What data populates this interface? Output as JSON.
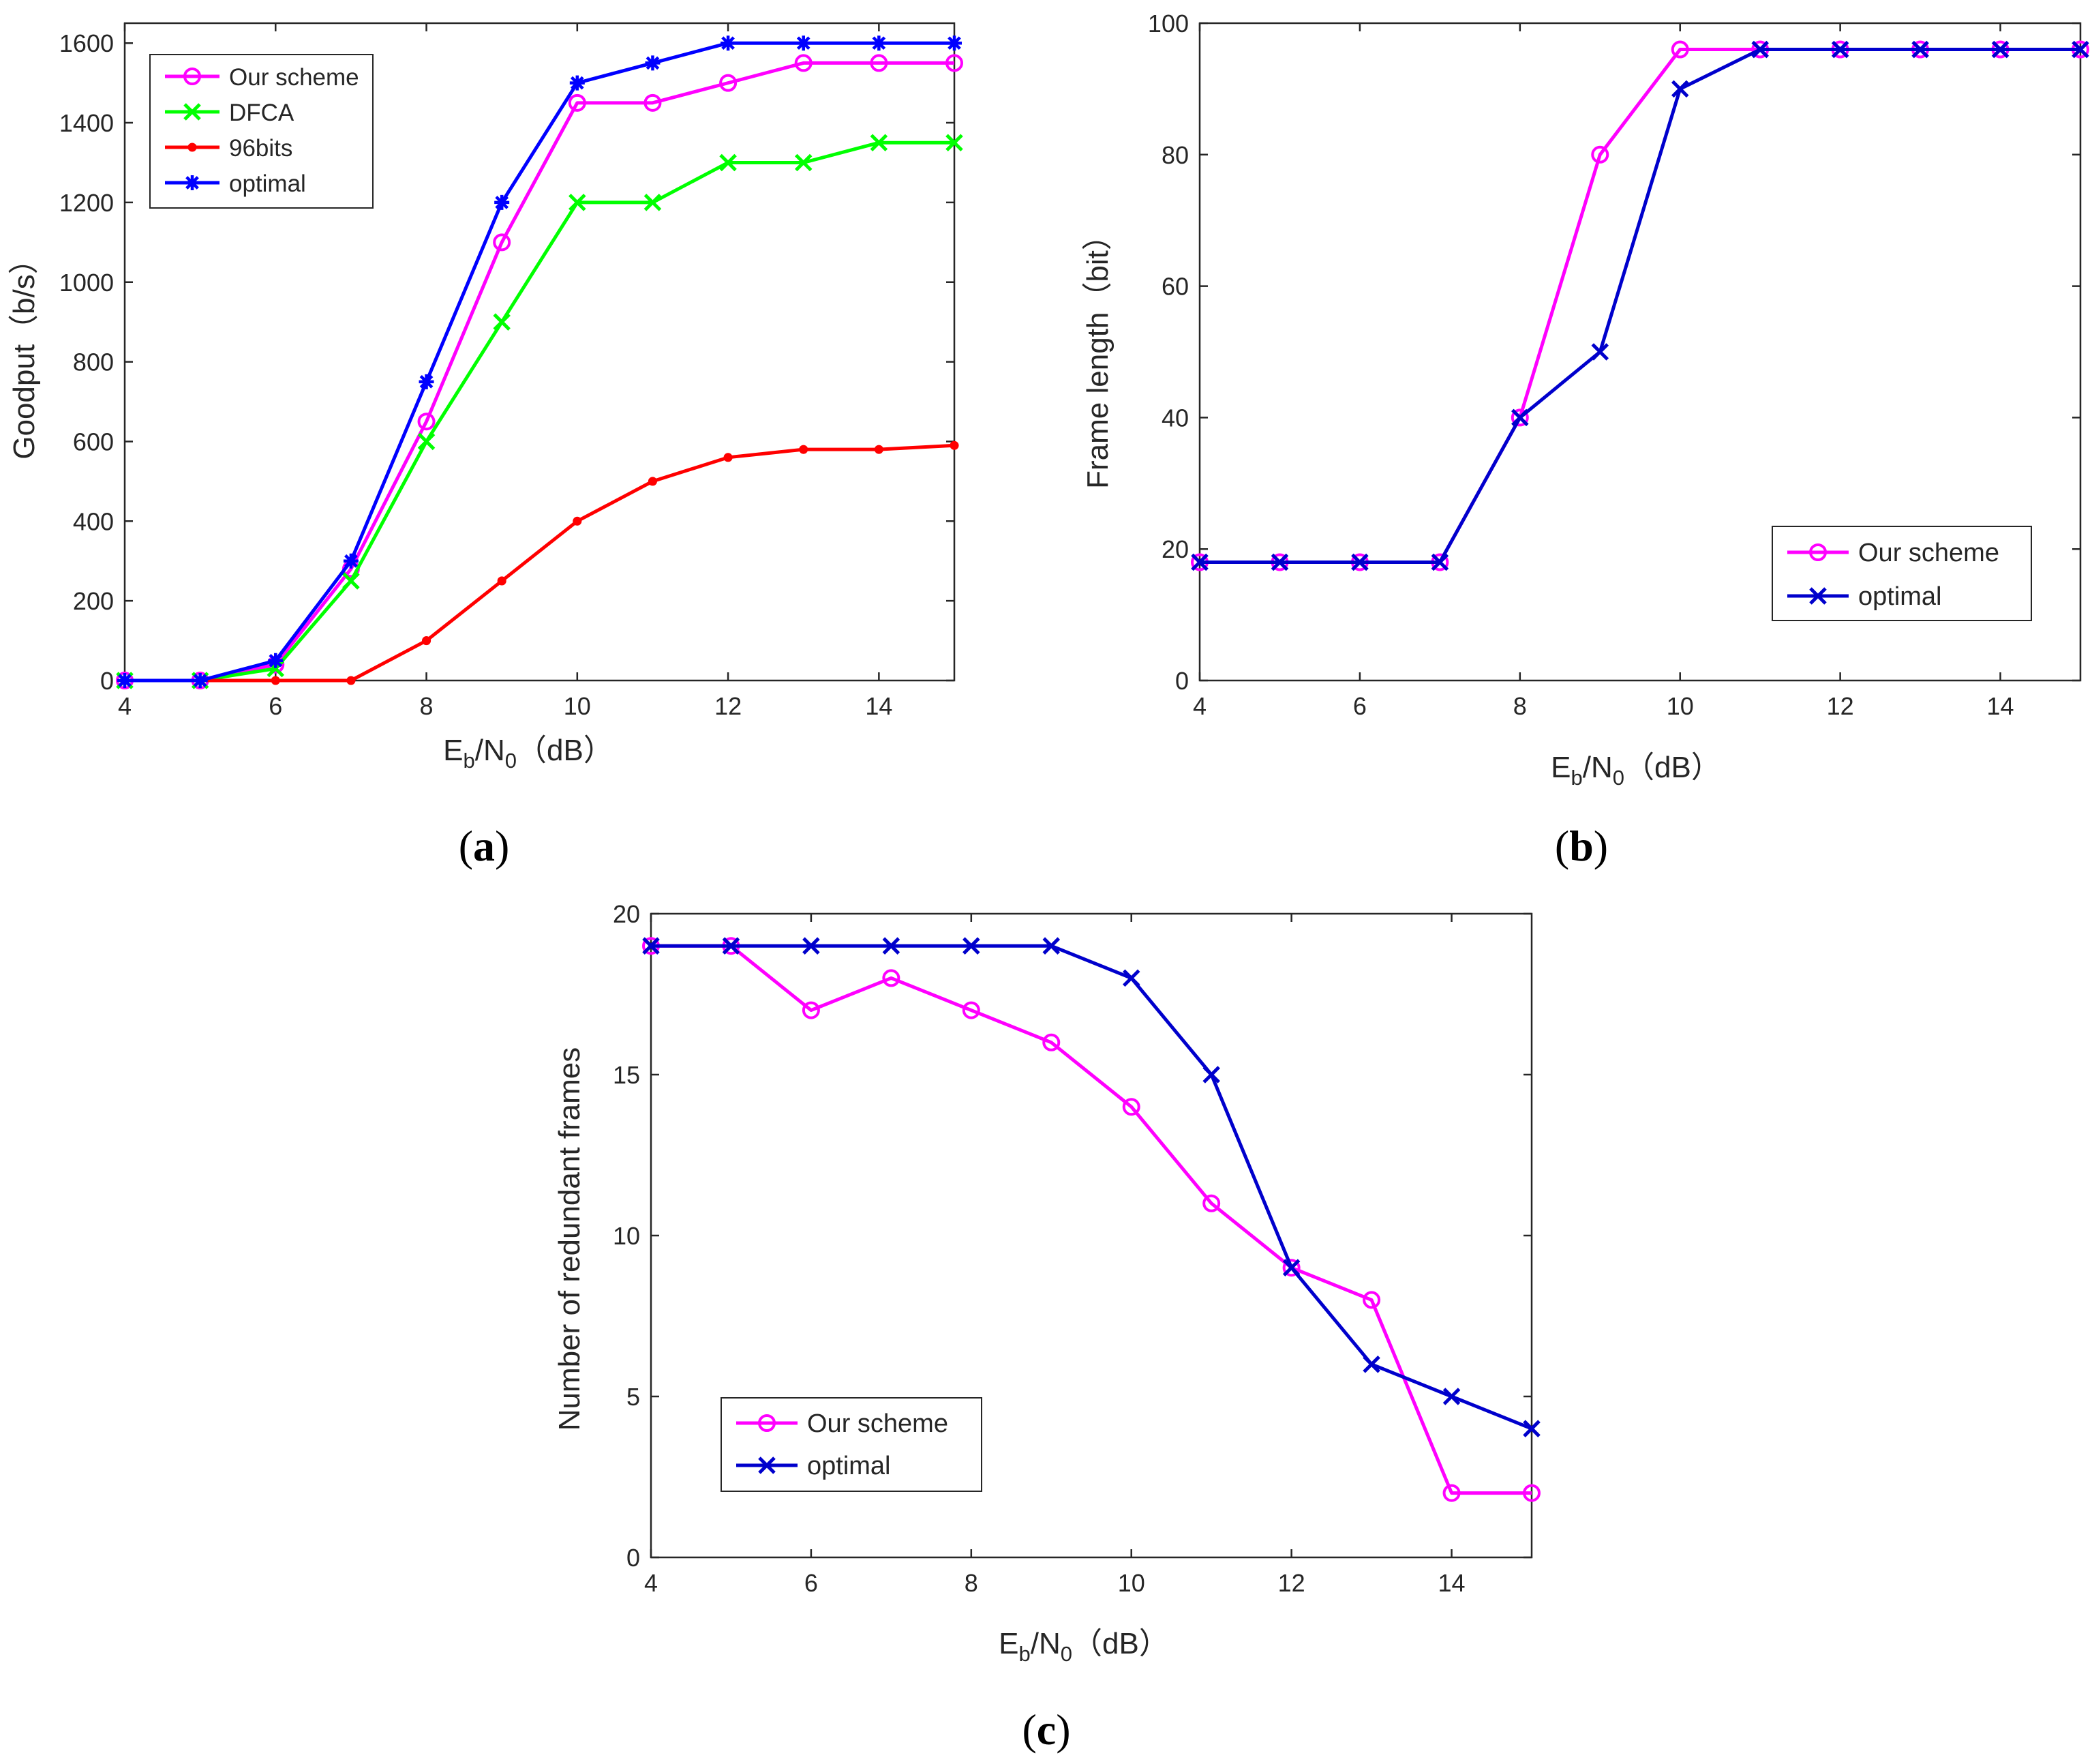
{
  "chart_data": [
    {
      "id": "a",
      "type": "line",
      "caption": "a",
      "xlabel": {
        "main": "E",
        "sub1": "b",
        "mid": "/N",
        "sub2": "0",
        "unit": "（dB）"
      },
      "ylabel": "Goodput（b/s）",
      "xlim": [
        4,
        15
      ],
      "ylim": [
        0,
        1650
      ],
      "xticks": [
        4,
        6,
        8,
        10,
        12,
        14
      ],
      "yticks": [
        0,
        200,
        400,
        600,
        800,
        1000,
        1200,
        1400,
        1600
      ],
      "legend_position": "top-left",
      "x": [
        4,
        5,
        6,
        7,
        8,
        9,
        10,
        11,
        12,
        13,
        14,
        15
      ],
      "series": [
        {
          "name": "Our scheme",
          "color": "#ff00ff",
          "marker": "circle",
          "values": [
            0,
            0,
            40,
            280,
            650,
            1100,
            1450,
            1450,
            1500,
            1550,
            1550,
            1550
          ]
        },
        {
          "name": "DFCA",
          "color": "#00ff00",
          "marker": "x",
          "values": [
            0,
            0,
            30,
            250,
            600,
            900,
            1200,
            1200,
            1300,
            1300,
            1350,
            1350
          ]
        },
        {
          "name": "96bits",
          "color": "#ff0000",
          "marker": "dot",
          "values": [
            0,
            0,
            0,
            0,
            100,
            250,
            400,
            500,
            560,
            580,
            580,
            590
          ]
        },
        {
          "name": "optimal",
          "color": "#0000ff",
          "marker": "star",
          "values": [
            0,
            0,
            50,
            300,
            750,
            1200,
            1500,
            1550,
            1600,
            1600,
            1600,
            1600
          ]
        }
      ]
    },
    {
      "id": "b",
      "type": "line",
      "caption": "b",
      "xlabel": {
        "main": "E",
        "sub1": "b",
        "mid": "/N",
        "sub2": "0",
        "unit": "（dB）"
      },
      "ylabel": "Frame length（bit）",
      "xlim": [
        4,
        15
      ],
      "ylim": [
        0,
        100
      ],
      "xticks": [
        4,
        6,
        8,
        10,
        12,
        14
      ],
      "yticks": [
        0,
        20,
        40,
        60,
        80,
        100
      ],
      "legend_position": "bottom-right",
      "x": [
        4,
        5,
        6,
        7,
        8,
        9,
        10,
        11,
        12,
        13,
        14,
        15
      ],
      "series": [
        {
          "name": "Our scheme",
          "color": "#ff00ff",
          "marker": "circle",
          "values": [
            18,
            18,
            18,
            18,
            40,
            80,
            96,
            96,
            96,
            96,
            96,
            96
          ]
        },
        {
          "name": "optimal",
          "color": "#0000cc",
          "marker": "x",
          "values": [
            18,
            18,
            18,
            18,
            40,
            50,
            90,
            96,
            96,
            96,
            96,
            96
          ]
        }
      ]
    },
    {
      "id": "c",
      "type": "line",
      "caption": "c",
      "xlabel": {
        "main": "E",
        "sub1": "b",
        "mid": "/N",
        "sub2": "0",
        "unit": "（dB）"
      },
      "ylabel": "Number of redundant frames",
      "xlim": [
        4,
        15
      ],
      "ylim": [
        0,
        20
      ],
      "xticks": [
        4,
        6,
        8,
        10,
        12,
        14
      ],
      "yticks": [
        0,
        5,
        10,
        15,
        20
      ],
      "legend_position": "bottom-left",
      "x": [
        4,
        5,
        6,
        7,
        8,
        9,
        10,
        11,
        12,
        13,
        14,
        15
      ],
      "series": [
        {
          "name": "Our scheme",
          "color": "#ff00ff",
          "marker": "circle",
          "values": [
            19,
            19,
            17,
            18,
            17,
            16,
            14,
            11,
            9,
            8,
            2,
            2
          ]
        },
        {
          "name": "optimal",
          "color": "#0000cc",
          "marker": "x",
          "values": [
            19,
            19,
            19,
            19,
            19,
            19,
            18,
            15,
            9,
            6,
            5,
            4
          ]
        }
      ]
    }
  ]
}
